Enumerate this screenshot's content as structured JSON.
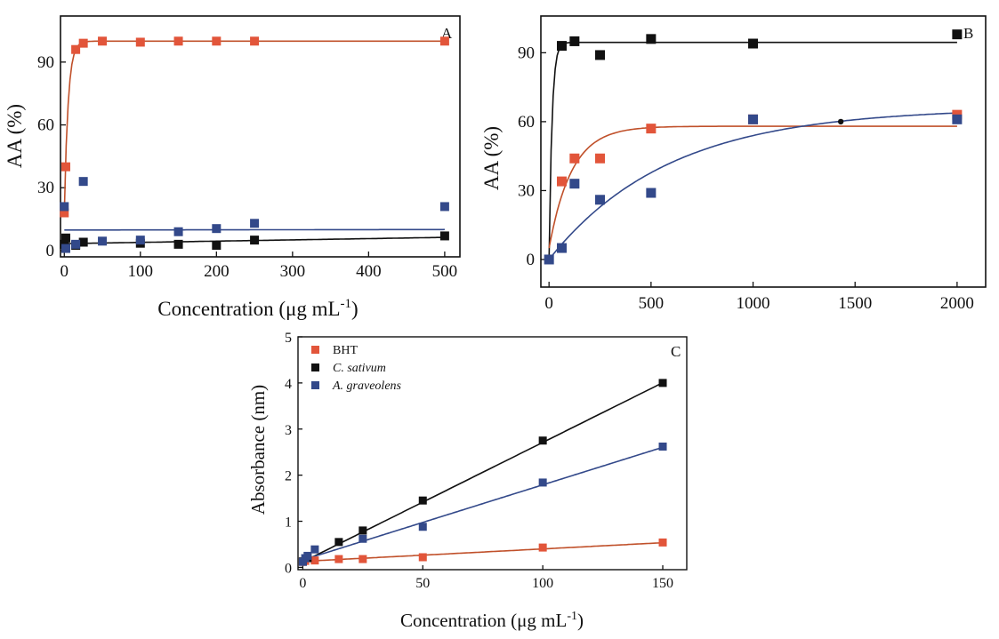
{
  "figure": {
    "colors": {
      "BHT": "#e2553a",
      "C_sativum": "#111111",
      "A_graveolens": "#33498a",
      "fit_BHT": "#c0502a",
      "fit_Cs": "#111111",
      "fit_Ag": "#33498a"
    }
  },
  "chart_data": [
    {
      "panel": "A",
      "type": "scatter",
      "xlabel": "Concentration (μg mL-1)",
      "xlabel_main": "Concentration (μg mL",
      "xlabel_sup": "-1",
      "xlabel_close": ")",
      "ylabel": "AA (%)",
      "xlim": [
        -5,
        520
      ],
      "ylim": [
        -3,
        112
      ],
      "xticks": [
        0,
        100,
        200,
        300,
        400,
        500
      ],
      "yticks": [
        0,
        30,
        60,
        90
      ],
      "series": [
        {
          "key": "BHT",
          "x": [
            0,
            2,
            15,
            25,
            50,
            100,
            150,
            200,
            250,
            500
          ],
          "y": [
            18,
            40,
            96,
            99,
            100,
            99.5,
            100,
            100,
            100,
            100
          ]
        },
        {
          "key": "C_sativum",
          "x": [
            0,
            2,
            15,
            25,
            100,
            150,
            200,
            250,
            500
          ],
          "y": [
            3,
            6,
            2.5,
            4,
            3.5,
            3,
            2.5,
            5,
            7
          ]
        },
        {
          "key": "A_graveolens",
          "x": [
            0,
            2,
            15,
            25,
            50,
            100,
            150,
            200,
            250,
            500
          ],
          "y": [
            21,
            1,
            3,
            33,
            4.5,
            5,
            9,
            10.5,
            13,
            21
          ]
        }
      ],
      "fits": [
        {
          "key": "BHT",
          "model": "exp",
          "a": 100,
          "b": 18,
          "k": 0.2
        },
        {
          "key": "A_graveolens",
          "model": "linear",
          "slope": 0.0005,
          "intercept": 9.8
        },
        {
          "key": "C_sativum",
          "model": "linear",
          "slope": 0.006,
          "intercept": 3.3
        }
      ]
    },
    {
      "panel": "B",
      "type": "scatter",
      "xlabel": "",
      "ylabel": "AA (%)",
      "xlim": [
        -40,
        2140
      ],
      "ylim": [
        -12,
        106
      ],
      "xticks": [
        0,
        500,
        1000,
        1500,
        2000
      ],
      "yticks": [
        0,
        30,
        60,
        90
      ],
      "series": [
        {
          "key": "C_sativum",
          "x": [
            62.5,
            125,
            250,
            500,
            1000,
            2000
          ],
          "y": [
            93,
            95,
            89,
            96,
            94,
            98
          ]
        },
        {
          "key": "BHT",
          "x": [
            62.5,
            125,
            250,
            500,
            1000,
            2000
          ],
          "y": [
            34,
            44,
            44,
            57,
            61,
            63
          ]
        },
        {
          "key": "A_graveolens",
          "x": [
            0,
            62.5,
            125,
            250,
            500,
            1000,
            2000
          ],
          "y": [
            0,
            5,
            33,
            26,
            29,
            61,
            61
          ]
        }
      ],
      "fits": [
        {
          "key": "C_sativum",
          "model": "exp",
          "a": 94.5,
          "b": 0,
          "k": 0.07
        },
        {
          "key": "BHT",
          "model": "exp",
          "a": 58,
          "b": 5,
          "k": 0.009
        },
        {
          "key": "A_graveolens",
          "model": "exp",
          "a": 66,
          "b": 0,
          "k": 0.0017
        }
      ],
      "marker": {
        "x": 1430,
        "y": 60
      }
    },
    {
      "panel": "C",
      "type": "scatter",
      "xlabel": "Concentration (μg mL-1)",
      "xlabel_main": "Concentration (μg mL",
      "xlabel_sup": "-1",
      "xlabel_close": ")",
      "ylabel": "Absorbance (nm)",
      "xlim": [
        -2,
        160
      ],
      "ylim": [
        -0.05,
        5
      ],
      "xticks": [
        0,
        50,
        100,
        150
      ],
      "yticks": [
        0,
        1,
        2,
        3,
        4,
        5
      ],
      "legend": {
        "position": "top-left",
        "entries": [
          {
            "key": "BHT",
            "label": "BHT",
            "italic": false
          },
          {
            "key": "C_sativum",
            "label": "C. sativum",
            "italic": true
          },
          {
            "key": "A_graveolens",
            "label": "A. graveolens",
            "italic": true
          }
        ]
      },
      "series": [
        {
          "key": "BHT",
          "x": [
            0,
            1,
            5,
            15,
            25,
            50,
            100,
            150
          ],
          "y": [
            0.12,
            0.14,
            0.15,
            0.18,
            0.18,
            0.22,
            0.43,
            0.54
          ]
        },
        {
          "key": "C_sativum",
          "x": [
            0,
            2,
            15,
            25,
            50,
            100,
            150
          ],
          "y": [
            0.13,
            0.2,
            0.55,
            0.8,
            1.45,
            2.75,
            4.0
          ]
        },
        {
          "key": "A_graveolens",
          "x": [
            0,
            1,
            2,
            5,
            25,
            50,
            100,
            150
          ],
          "y": [
            0.12,
            0.2,
            0.25,
            0.39,
            0.62,
            0.88,
            1.84,
            2.62
          ]
        }
      ],
      "fits": [
        {
          "key": "BHT",
          "model": "linear",
          "slope": 0.0027,
          "intercept": 0.13
        },
        {
          "key": "C_sativum",
          "model": "linear",
          "slope": 0.0259,
          "intercept": 0.12
        },
        {
          "key": "A_graveolens",
          "model": "linear",
          "slope": 0.0163,
          "intercept": 0.16
        }
      ]
    }
  ]
}
